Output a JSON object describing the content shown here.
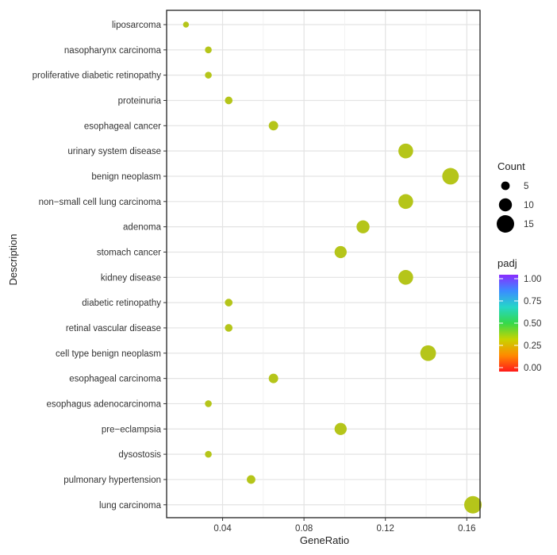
{
  "chart_data": {
    "type": "scatter",
    "subtype": "dot-plot",
    "title": "",
    "xlabel": "GeneRatio",
    "ylabel": "Description",
    "xlim": [
      0.0125,
      0.1665
    ],
    "x_ticks": [
      0.04,
      0.08,
      0.12,
      0.16
    ],
    "x_tick_labels": [
      "0.04",
      "0.08",
      "0.12",
      "0.16"
    ],
    "grid": true,
    "categories": [
      "liposarcoma",
      "nasopharynx carcinoma",
      "proliferative diabetic retinopathy",
      "proteinuria",
      "esophageal cancer",
      "urinary system disease",
      "benign neoplasm",
      "non-small cell lung carcinoma",
      "adenoma",
      "stomach cancer",
      "kidney disease",
      "diabetic retinopathy",
      "retinal vascular disease",
      "cell type benign neoplasm",
      "esophageal carcinoma",
      "esophagus adenocarcinoma",
      "pre-eclampsia",
      "dysostosis",
      "pulmonary hypertension",
      "lung carcinoma"
    ],
    "category_labels": [
      "liposarcoma",
      "nasopharynx carcinoma",
      "proliferative diabetic retinopathy",
      "proteinuria",
      "esophageal cancer",
      "urinary system disease",
      "benign neoplasm",
      "non−small cell lung carcinoma",
      "adenoma",
      "stomach cancer",
      "kidney disease",
      "diabetic retinopathy",
      "retinal vascular disease",
      "cell type benign neoplasm",
      "esophageal carcinoma",
      "esophagus adenocarcinoma",
      "pre−eclampsia",
      "dysostosis",
      "pulmonary hypertension",
      "lung carcinoma"
    ],
    "gene_ratio": [
      0.022,
      0.033,
      0.033,
      0.043,
      0.065,
      0.13,
      0.152,
      0.13,
      0.109,
      0.098,
      0.13,
      0.043,
      0.043,
      0.141,
      0.065,
      0.033,
      0.098,
      0.033,
      0.054,
      0.163
    ],
    "count": [
      2,
      3,
      3,
      4,
      6,
      12,
      14,
      12,
      10,
      9,
      12,
      4,
      4,
      13,
      6,
      3,
      9,
      3,
      5,
      15
    ],
    "padj": [
      0.22,
      0.22,
      0.22,
      0.22,
      0.22,
      0.22,
      0.22,
      0.22,
      0.22,
      0.22,
      0.22,
      0.22,
      0.22,
      0.22,
      0.22,
      0.22,
      0.22,
      0.22,
      0.22,
      0.22
    ],
    "point_color": "#b5c51a",
    "size_legend": {
      "title": "Count",
      "values": [
        5,
        10,
        15
      ],
      "labels": [
        "5",
        "10",
        "15"
      ]
    },
    "color_legend": {
      "title": "padj",
      "range": [
        0.0,
        1.0
      ],
      "ticks": [
        0.0,
        0.25,
        0.5,
        0.75,
        1.0
      ],
      "tick_labels": [
        "0.00",
        "0.25",
        "0.50",
        "0.75",
        "1.00"
      ],
      "colors": [
        "#ff1a1a",
        "#ff8a00",
        "#c8d400",
        "#35d94b",
        "#26d6c8",
        "#3a8cff",
        "#8a2cff"
      ]
    }
  }
}
